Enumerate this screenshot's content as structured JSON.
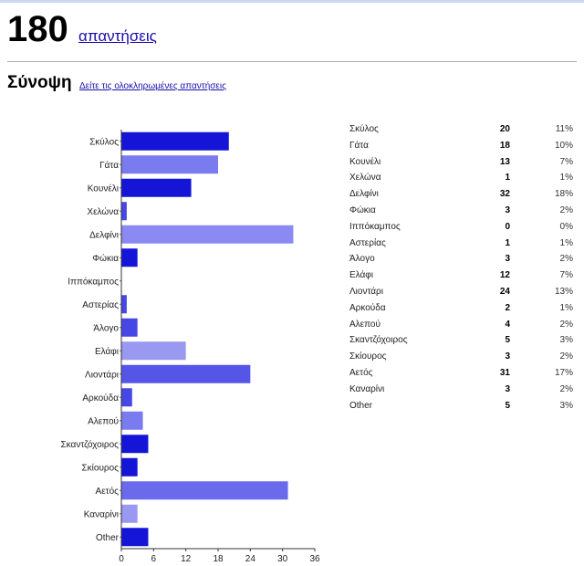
{
  "header": {
    "count": "180",
    "responses_link": "απαντήσεις"
  },
  "summary": {
    "title": "Σύνοψη",
    "link": "Δείτε τις ολοκληρωμένες απαντήσεις"
  },
  "chart_data": {
    "type": "bar",
    "orientation": "horizontal",
    "categories": [
      "Σκύλος",
      "Γάτα",
      "Κουνέλι",
      "Χελώνα",
      "Δελφίνι",
      "Φώκια",
      "Ιππόκαμπος",
      "Αστερίας",
      "Άλογο",
      "Ελάφι",
      "Λιοντάρι",
      "Αρκούδα",
      "Αλεπού",
      "Σκαντζόχοιρος",
      "Σκίουρος",
      "Αετός",
      "Καναρίνι",
      "Other"
    ],
    "values": [
      20,
      18,
      13,
      1,
      32,
      3,
      0,
      1,
      3,
      12,
      24,
      2,
      4,
      5,
      3,
      31,
      3,
      5
    ],
    "xlim": [
      0,
      36
    ],
    "xticks": [
      "0",
      "6",
      "12",
      "18",
      "24",
      "30",
      "36"
    ],
    "bar_colors": [
      "#1515d8",
      "#7b7bf0",
      "#1515d8",
      "#4747e6",
      "#8a8af2",
      "#1515d8",
      "#1515d8",
      "#4747e6",
      "#4747e6",
      "#9999f2",
      "#5555e8",
      "#4747e6",
      "#7b7bf0",
      "#1515d8",
      "#1515d8",
      "#6a6aec",
      "#9999f2",
      "#1515d8"
    ],
    "grid": false
  },
  "table": {
    "rows": [
      {
        "label": "Σκύλος",
        "count": "20",
        "pct": "11%"
      },
      {
        "label": "Γάτα",
        "count": "18",
        "pct": "10%"
      },
      {
        "label": "Κουνέλι",
        "count": "13",
        "pct": "7%"
      },
      {
        "label": "Χελώνα",
        "count": "1",
        "pct": "1%"
      },
      {
        "label": "Δελφίνι",
        "count": "32",
        "pct": "18%"
      },
      {
        "label": "Φώκια",
        "count": "3",
        "pct": "2%"
      },
      {
        "label": "Ιππόκαμπος",
        "count": "0",
        "pct": "0%"
      },
      {
        "label": "Αστερίας",
        "count": "1",
        "pct": "1%"
      },
      {
        "label": "Άλογο",
        "count": "3",
        "pct": "2%"
      },
      {
        "label": "Ελάφι",
        "count": "12",
        "pct": "7%"
      },
      {
        "label": "Λιοντάρι",
        "count": "24",
        "pct": "13%"
      },
      {
        "label": "Αρκούδα",
        "count": "2",
        "pct": "1%"
      },
      {
        "label": "Αλεπού",
        "count": "4",
        "pct": "2%"
      },
      {
        "label": "Σκαντζόχοιρος",
        "count": "5",
        "pct": "3%"
      },
      {
        "label": "Σκίουρος",
        "count": "3",
        "pct": "2%"
      },
      {
        "label": "Αετός",
        "count": "31",
        "pct": "17%"
      },
      {
        "label": "Καναρίνι",
        "count": "3",
        "pct": "2%"
      },
      {
        "label": "Other",
        "count": "5",
        "pct": "3%"
      }
    ]
  }
}
